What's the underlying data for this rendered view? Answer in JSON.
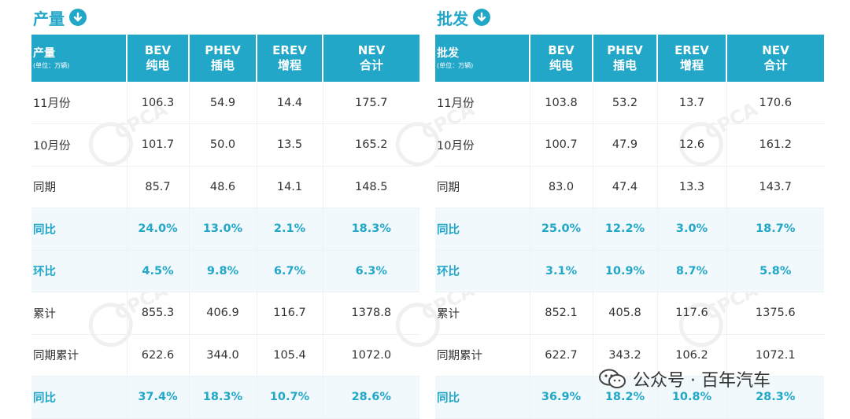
{
  "production": {
    "title": "产量",
    "header": {
      "label": "产量",
      "unit": "(单位：万辆)"
    },
    "columns": [
      {
        "l1": "BEV",
        "l2": "纯电"
      },
      {
        "l1": "PHEV",
        "l2": "插电"
      },
      {
        "l1": "EREV",
        "l2": "增程"
      },
      {
        "l1": "NEV",
        "l2": "合计"
      }
    ],
    "rows": [
      {
        "label": "11月份",
        "values": [
          "106.3",
          "54.9",
          "14.4",
          "175.7"
        ],
        "accent": false
      },
      {
        "label": "10月份",
        "values": [
          "101.7",
          "50.0",
          "13.5",
          "165.2"
        ],
        "accent": false
      },
      {
        "label": "同期",
        "values": [
          "85.7",
          "48.6",
          "14.1",
          "148.5"
        ],
        "accent": false
      },
      {
        "label": "同比",
        "values": [
          "24.0%",
          "13.0%",
          "2.1%",
          "18.3%"
        ],
        "accent": true
      },
      {
        "label": "环比",
        "values": [
          "4.5%",
          "9.8%",
          "6.7%",
          "6.3%"
        ],
        "accent": true
      },
      {
        "label": "累计",
        "values": [
          "855.3",
          "406.9",
          "116.7",
          "1378.8"
        ],
        "accent": false
      },
      {
        "label": "同期累计",
        "values": [
          "622.6",
          "344.0",
          "105.4",
          "1072.0"
        ],
        "accent": false
      },
      {
        "label": "同比",
        "values": [
          "37.4%",
          "18.3%",
          "10.7%",
          "28.6%"
        ],
        "accent": true
      }
    ]
  },
  "wholesale": {
    "title": "批发",
    "header": {
      "label": "批发",
      "unit": "(单位：万辆)"
    },
    "columns": [
      {
        "l1": "BEV",
        "l2": "纯电"
      },
      {
        "l1": "PHEV",
        "l2": "插电"
      },
      {
        "l1": "EREV",
        "l2": "增程"
      },
      {
        "l1": "NEV",
        "l2": "合计"
      }
    ],
    "rows": [
      {
        "label": "11月份",
        "values": [
          "103.8",
          "53.2",
          "13.7",
          "170.6"
        ],
        "accent": false
      },
      {
        "label": "10月份",
        "values": [
          "100.7",
          "47.9",
          "12.6",
          "161.2"
        ],
        "accent": false
      },
      {
        "label": "同期",
        "values": [
          "83.0",
          "47.4",
          "13.3",
          "143.7"
        ],
        "accent": false
      },
      {
        "label": "同比",
        "values": [
          "25.0%",
          "12.2%",
          "3.0%",
          "18.7%"
        ],
        "accent": true
      },
      {
        "label": "环比",
        "values": [
          "3.1%",
          "10.9%",
          "8.7%",
          "5.8%"
        ],
        "accent": true
      },
      {
        "label": "累计",
        "values": [
          "852.1",
          "405.8",
          "117.6",
          "1375.6"
        ],
        "accent": false
      },
      {
        "label": "同期累计",
        "values": [
          "622.7",
          "343.2",
          "106.2",
          "1072.1"
        ],
        "accent": false
      },
      {
        "label": "同比",
        "values": [
          "36.9%",
          "18.2%",
          "10.8%",
          "28.3%"
        ],
        "accent": true
      }
    ]
  },
  "watermark": {
    "text": "CPCA"
  },
  "brand": {
    "text": "公众号 · 百年汽车",
    "icon": "wechat-icon"
  },
  "colors": {
    "accent": "#22a7c9",
    "accent_row_bg": "#f1f9fc",
    "text": "#333333"
  }
}
